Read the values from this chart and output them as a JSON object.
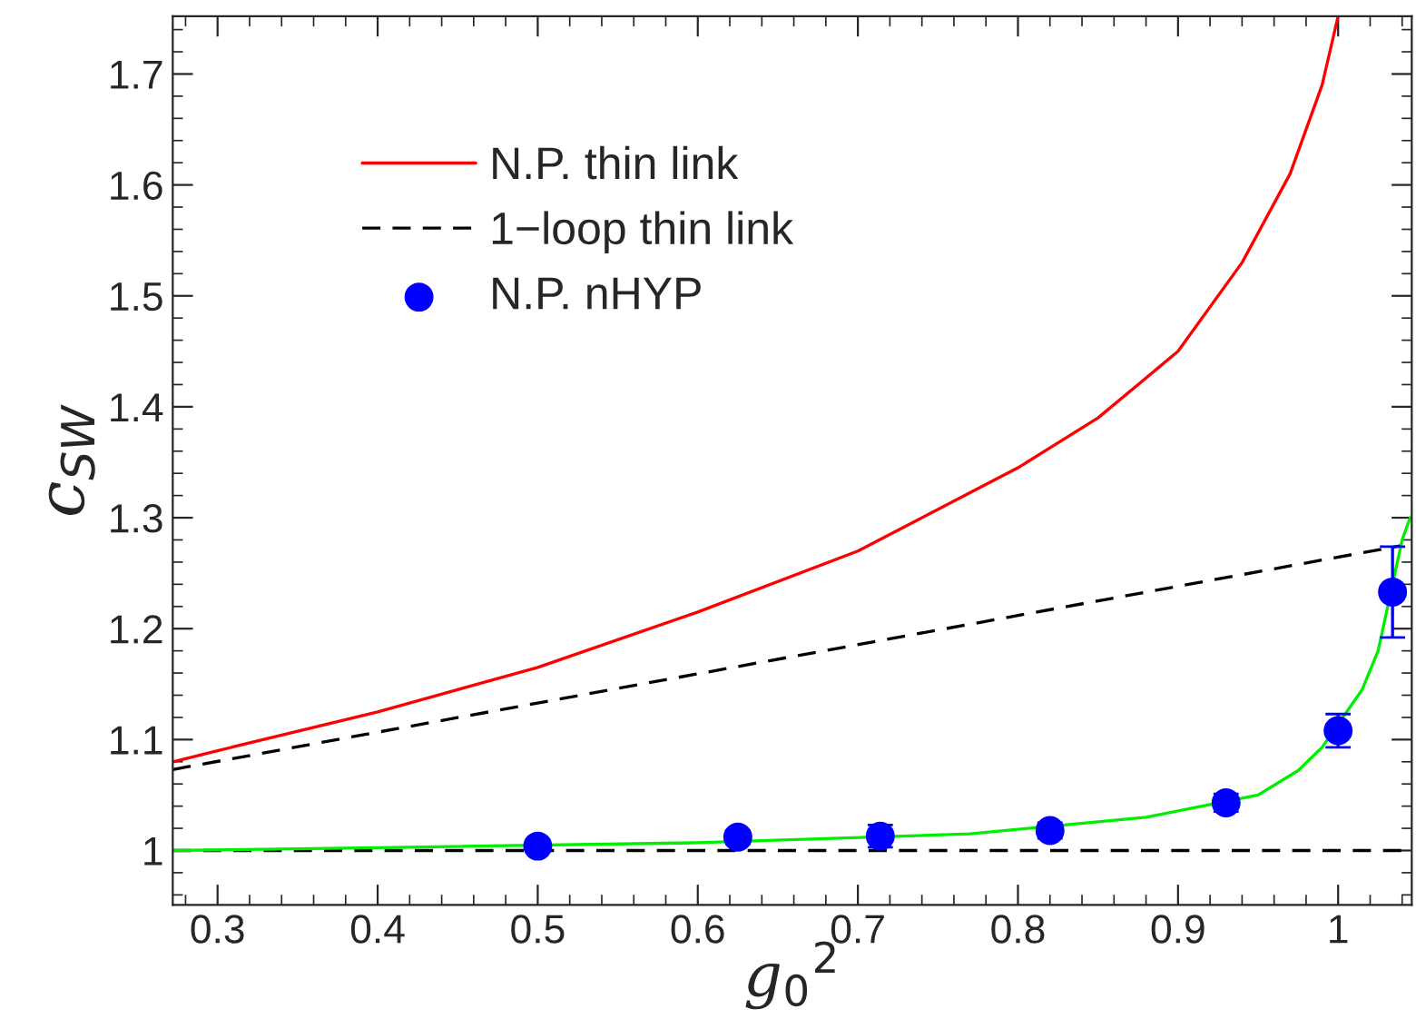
{
  "chart_data": {
    "type": "line",
    "xlabel": "g$_{0}$$^{2}$",
    "ylabel": "c$_{SW}$",
    "xlim": [
      0.272,
      1.046
    ],
    "ylim": [
      0.951,
      1.752
    ],
    "xticks": [
      0.3,
      0.4,
      0.5,
      0.6,
      0.7,
      0.8,
      0.9,
      {
        "value": 1.0,
        "label": "1"
      }
    ],
    "yticks": [
      {
        "value": 1.0,
        "label": "1"
      },
      1.1,
      1.2,
      1.3,
      1.4,
      1.5,
      1.6,
      1.7
    ],
    "grid": false,
    "legend": "top left",
    "ref_lines": [
      {
        "axis": "y",
        "value": 1.0,
        "color": "#000000",
        "line_style": "dashed"
      }
    ],
    "series": [
      {
        "name": "N.P. thin link",
        "color": "#ff0000",
        "line_style": "solid",
        "x": [
          0.272,
          0.3,
          0.4,
          0.5,
          0.6,
          0.7,
          0.8,
          0.85,
          0.9,
          0.94,
          0.97,
          0.99,
          1.0
        ],
        "values": [
          1.08,
          1.09,
          1.125,
          1.165,
          1.215,
          1.27,
          1.345,
          1.39,
          1.45,
          1.53,
          1.61,
          1.69,
          1.752
        ]
      },
      {
        "name": "1−loop thin link",
        "color": "#000000",
        "line_style": "dashed",
        "x": [
          0.272,
          1.04
        ],
        "values": [
          1.073,
          1.275
        ]
      },
      {
        "name": "N.P. nHYP",
        "type": "scatter",
        "color": "#0000ff",
        "marker": "circle",
        "x": [
          0.5,
          0.625,
          0.714,
          0.82,
          0.93,
          1.0,
          1.034
        ],
        "values": [
          1.004,
          1.012,
          1.013,
          1.018,
          1.043,
          1.108,
          1.233
        ],
        "errors": [
          0.004,
          0.006,
          0.01,
          0.007,
          0.008,
          0.015,
          0.041
        ]
      },
      {
        "color": "#00ee00",
        "line_style": "solid",
        "x": [
          0.272,
          0.42,
          0.6,
          0.77,
          0.88,
          0.95,
          0.975,
          0.99,
          1.015,
          1.025,
          1.04,
          1.045
        ],
        "values": [
          1.0,
          1.003,
          1.007,
          1.015,
          1.03,
          1.05,
          1.072,
          1.093,
          1.145,
          1.18,
          1.28,
          1.3
        ]
      }
    ]
  }
}
